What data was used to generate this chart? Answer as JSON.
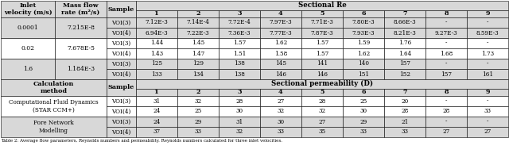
{
  "section1_header": "Sectional Re",
  "section2_header": "Sectional permeability (D)",
  "col_headers": [
    "1",
    "2",
    "3",
    "4",
    "5",
    "6",
    "7",
    "8",
    "9"
  ],
  "inlet_label": "Inlet\nvelocity (m/s)",
  "mass_label": "Mass flow\nrate (m²/s)",
  "calc_label": "Calculation\nmethod",
  "sample_label": "Sample",
  "top_section": {
    "rows": [
      {
        "inlet": "0.0001",
        "mass": "7.215E-8",
        "samples": [
          [
            "VOI(3)",
            "7.12E-3",
            "7.14E-4",
            "7.72E-4",
            "7.97E-3",
            "7.71E-3",
            "7.80E-3",
            "8.66E-3",
            "-",
            "-"
          ],
          [
            "VOI(4)",
            "6.94E-3",
            "7.22E-3",
            "7.36E-3",
            "7.77E-3",
            "7.87E-3",
            "7.93E-3",
            "8.21E-3",
            "9.27E-3",
            "8.59E-3"
          ]
        ]
      },
      {
        "inlet": "0.02",
        "mass": "7.678E-5",
        "samples": [
          [
            "VOI(3)",
            "1.44",
            "1.45",
            "1.57",
            "1.62",
            "1.57",
            "1.59",
            "1.76",
            "-",
            "-"
          ],
          [
            "VOI(4)",
            "1.43",
            "1.47",
            "1.51",
            "1.58",
            "1.57",
            "1.62",
            "1.64",
            "1.68",
            "1.73"
          ]
        ]
      },
      {
        "inlet": "1.6",
        "mass": "1.184E-3",
        "samples": [
          [
            "VOI(3)",
            "125",
            "129",
            "138",
            "145",
            "141",
            "140",
            "157",
            "-",
            "-"
          ],
          [
            "VOI(4)",
            "133",
            "134",
            "138",
            "146",
            "146",
            "151",
            "152",
            "157",
            "161"
          ]
        ]
      }
    ]
  },
  "bottom_section": {
    "rows": [
      {
        "method": "Computational Fluid Dynamics\n(STAR CCM+)",
        "samples": [
          [
            "VOI(3)",
            "31",
            "32",
            "28",
            "27",
            "28",
            "25",
            "20",
            "-",
            "-"
          ],
          [
            "VOI(4)",
            "24",
            "25",
            "30",
            "32",
            "32",
            "30",
            "28",
            "28",
            "33"
          ]
        ]
      },
      {
        "method": "Pore Network\nModelling",
        "samples": [
          [
            "VOI(3)",
            "24",
            "29",
            "31",
            "30",
            "27",
            "29",
            "21",
            "-",
            "-"
          ],
          [
            "VOI(4)",
            "37",
            "33",
            "32",
            "33",
            "35",
            "33",
            "33",
            "27",
            "27"
          ]
        ]
      }
    ]
  },
  "caption": "Table 2: Average flow parameters, Reynolds numbers and permeability. Reynolds numbers calculated for three inlet velocities.",
  "gray": "#b0b0b0",
  "lgray": "#d8d8d8",
  "white": "#ffffff",
  "black": "#000000"
}
